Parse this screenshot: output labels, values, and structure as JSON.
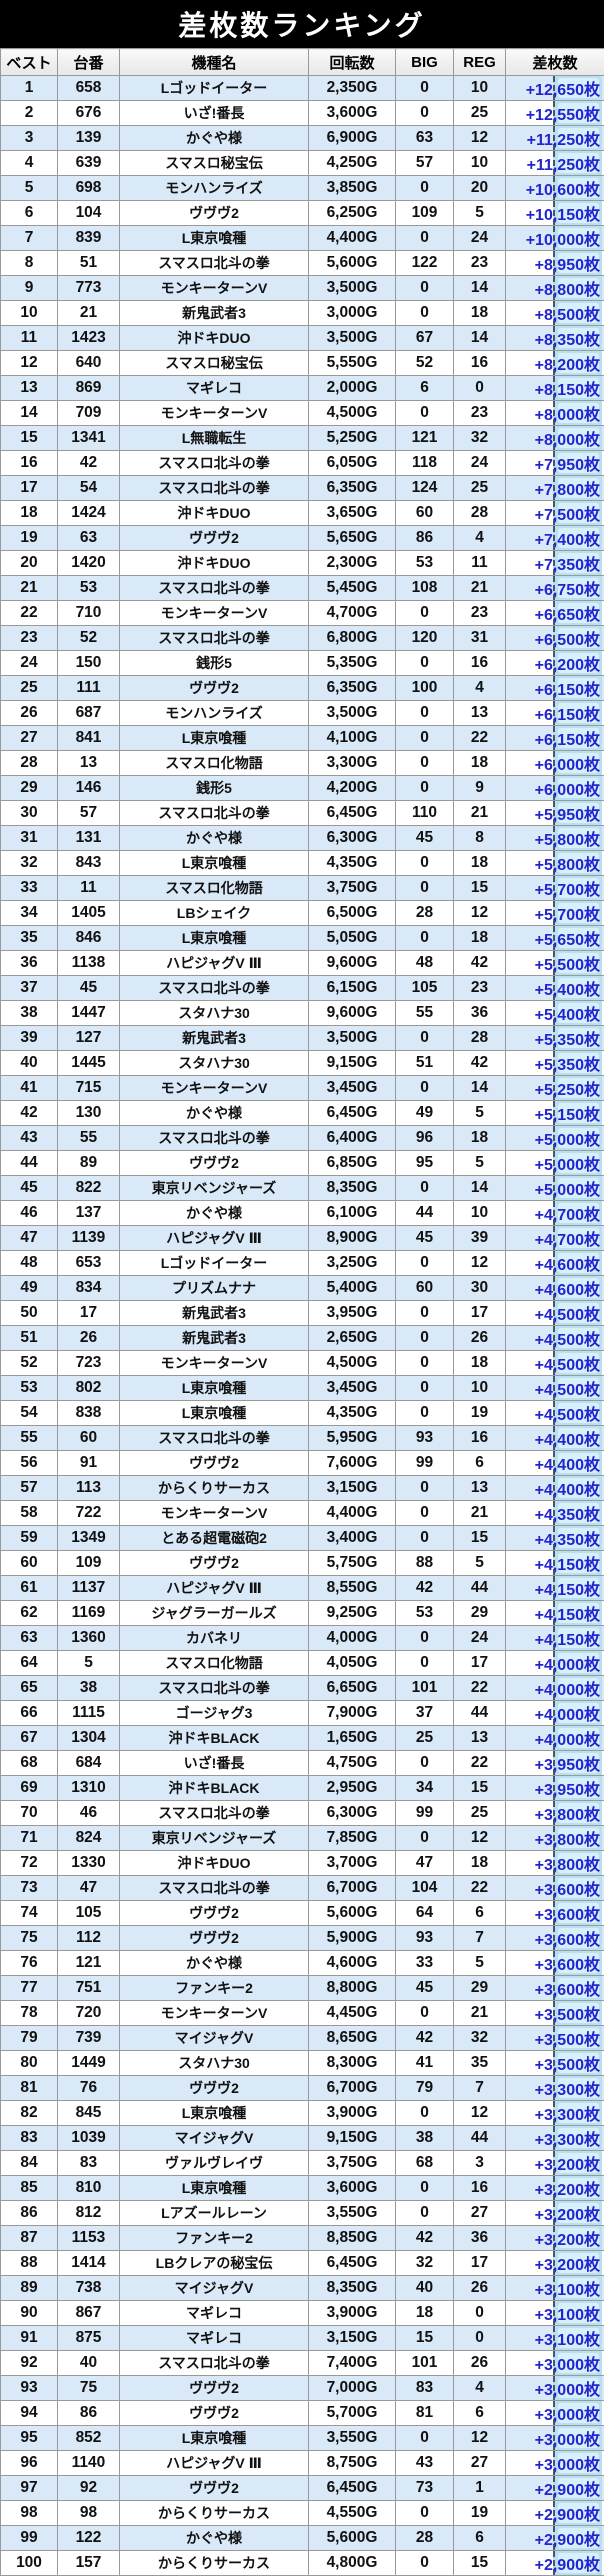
{
  "title": "差枚数ランキング",
  "columns": [
    "ベスト",
    "台番",
    "機種名",
    "回転数",
    "BIG",
    "REG",
    "差枚数"
  ],
  "colors": {
    "title_bg": "#000000",
    "title_text": "#ffffff",
    "header_bg": "#eeeeee",
    "row_alt_blue": "#d9e9f8",
    "row_white": "#ffffff",
    "border": "#999999",
    "diff_text_blue": "#2424cf",
    "highlight_band": "#cdeaf8"
  },
  "rows": [
    [
      "1",
      "658",
      "Lゴッドイーター",
      "2,350G",
      "0",
      "10",
      "+12,650枚"
    ],
    [
      "2",
      "676",
      "いざ!番長",
      "3,600G",
      "0",
      "25",
      "+12,550枚"
    ],
    [
      "3",
      "139",
      "かぐや様",
      "6,900G",
      "63",
      "12",
      "+11,250枚"
    ],
    [
      "4",
      "639",
      "スマスロ秘宝伝",
      "4,250G",
      "57",
      "10",
      "+11,250枚"
    ],
    [
      "5",
      "698",
      "モンハンライズ",
      "3,850G",
      "0",
      "20",
      "+10,600枚"
    ],
    [
      "6",
      "104",
      "ヴヴヴ2",
      "6,250G",
      "109",
      "5",
      "+10,150枚"
    ],
    [
      "7",
      "839",
      "L東京喰種",
      "4,400G",
      "0",
      "24",
      "+10,000枚"
    ],
    [
      "8",
      "51",
      "スマスロ北斗の拳",
      "5,600G",
      "122",
      "23",
      "+8,950枚"
    ],
    [
      "9",
      "773",
      "モンキーターンV",
      "3,500G",
      "0",
      "14",
      "+8,800枚"
    ],
    [
      "10",
      "21",
      "新鬼武者3",
      "3,000G",
      "0",
      "18",
      "+8,500枚"
    ],
    [
      "11",
      "1423",
      "沖ドキDUO",
      "3,500G",
      "67",
      "14",
      "+8,350枚"
    ],
    [
      "12",
      "640",
      "スマスロ秘宝伝",
      "5,550G",
      "52",
      "16",
      "+8,200枚"
    ],
    [
      "13",
      "869",
      "マギレコ",
      "2,000G",
      "6",
      "0",
      "+8,150枚"
    ],
    [
      "14",
      "709",
      "モンキーターンV",
      "4,500G",
      "0",
      "23",
      "+8,000枚"
    ],
    [
      "15",
      "1341",
      "L無職転生",
      "5,250G",
      "121",
      "32",
      "+8,000枚"
    ],
    [
      "16",
      "42",
      "スマスロ北斗の拳",
      "6,050G",
      "118",
      "24",
      "+7,950枚"
    ],
    [
      "17",
      "54",
      "スマスロ北斗の拳",
      "6,350G",
      "124",
      "25",
      "+7,800枚"
    ],
    [
      "18",
      "1424",
      "沖ドキDUO",
      "3,650G",
      "60",
      "28",
      "+7,500枚"
    ],
    [
      "19",
      "63",
      "ヴヴヴ2",
      "5,650G",
      "86",
      "4",
      "+7,400枚"
    ],
    [
      "20",
      "1420",
      "沖ドキDUO",
      "2,300G",
      "53",
      "11",
      "+7,350枚"
    ],
    [
      "21",
      "53",
      "スマスロ北斗の拳",
      "5,450G",
      "108",
      "21",
      "+6,750枚"
    ],
    [
      "22",
      "710",
      "モンキーターンV",
      "4,700G",
      "0",
      "23",
      "+6,650枚"
    ],
    [
      "23",
      "52",
      "スマスロ北斗の拳",
      "6,800G",
      "120",
      "31",
      "+6,500枚"
    ],
    [
      "24",
      "150",
      "銭形5",
      "5,350G",
      "0",
      "16",
      "+6,200枚"
    ],
    [
      "25",
      "111",
      "ヴヴヴ2",
      "6,350G",
      "100",
      "4",
      "+6,150枚"
    ],
    [
      "26",
      "687",
      "モンハンライズ",
      "3,500G",
      "0",
      "13",
      "+6,150枚"
    ],
    [
      "27",
      "841",
      "L東京喰種",
      "4,100G",
      "0",
      "22",
      "+6,150枚"
    ],
    [
      "28",
      "13",
      "スマスロ化物語",
      "3,300G",
      "0",
      "18",
      "+6,000枚"
    ],
    [
      "29",
      "146",
      "銭形5",
      "4,200G",
      "0",
      "9",
      "+6,000枚"
    ],
    [
      "30",
      "57",
      "スマスロ北斗の拳",
      "6,450G",
      "110",
      "21",
      "+5,950枚"
    ],
    [
      "31",
      "131",
      "かぐや様",
      "6,300G",
      "45",
      "8",
      "+5,800枚"
    ],
    [
      "32",
      "843",
      "L東京喰種",
      "4,350G",
      "0",
      "18",
      "+5,800枚"
    ],
    [
      "33",
      "11",
      "スマスロ化物語",
      "3,750G",
      "0",
      "15",
      "+5,700枚"
    ],
    [
      "34",
      "1405",
      "LBシェイク",
      "6,500G",
      "28",
      "12",
      "+5,700枚"
    ],
    [
      "35",
      "846",
      "L東京喰種",
      "5,050G",
      "0",
      "18",
      "+5,650枚"
    ],
    [
      "36",
      "1138",
      "ハピジャグV Ⅲ",
      "9,600G",
      "48",
      "42",
      "+5,500枚"
    ],
    [
      "37",
      "45",
      "スマスロ北斗の拳",
      "6,150G",
      "105",
      "23",
      "+5,400枚"
    ],
    [
      "38",
      "1447",
      "スタハナ30",
      "9,600G",
      "55",
      "36",
      "+5,400枚"
    ],
    [
      "39",
      "127",
      "新鬼武者3",
      "3,500G",
      "0",
      "28",
      "+5,350枚"
    ],
    [
      "40",
      "1445",
      "スタハナ30",
      "9,150G",
      "51",
      "42",
      "+5,350枚"
    ],
    [
      "41",
      "715",
      "モンキーターンV",
      "3,450G",
      "0",
      "14",
      "+5,250枚"
    ],
    [
      "42",
      "130",
      "かぐや様",
      "6,450G",
      "49",
      "5",
      "+5,150枚"
    ],
    [
      "43",
      "55",
      "スマスロ北斗の拳",
      "6,400G",
      "96",
      "18",
      "+5,000枚"
    ],
    [
      "44",
      "89",
      "ヴヴヴ2",
      "6,850G",
      "95",
      "5",
      "+5,000枚"
    ],
    [
      "45",
      "822",
      "東京リベンジャーズ",
      "8,350G",
      "0",
      "14",
      "+5,000枚"
    ],
    [
      "46",
      "137",
      "かぐや様",
      "6,100G",
      "44",
      "10",
      "+4,700枚"
    ],
    [
      "47",
      "1139",
      "ハピジャグV Ⅲ",
      "8,900G",
      "45",
      "39",
      "+4,700枚"
    ],
    [
      "48",
      "653",
      "Lゴッドイーター",
      "3,250G",
      "0",
      "12",
      "+4,600枚"
    ],
    [
      "49",
      "834",
      "プリズムナナ",
      "5,400G",
      "60",
      "30",
      "+4,600枚"
    ],
    [
      "50",
      "17",
      "新鬼武者3",
      "3,950G",
      "0",
      "17",
      "+4,500枚"
    ],
    [
      "51",
      "26",
      "新鬼武者3",
      "2,650G",
      "0",
      "26",
      "+4,500枚"
    ],
    [
      "52",
      "723",
      "モンキーターンV",
      "4,500G",
      "0",
      "18",
      "+4,500枚"
    ],
    [
      "53",
      "802",
      "L東京喰種",
      "3,450G",
      "0",
      "10",
      "+4,500枚"
    ],
    [
      "54",
      "838",
      "L東京喰種",
      "4,350G",
      "0",
      "19",
      "+4,500枚"
    ],
    [
      "55",
      "60",
      "スマスロ北斗の拳",
      "5,950G",
      "93",
      "16",
      "+4,400枚"
    ],
    [
      "56",
      "91",
      "ヴヴヴ2",
      "7,600G",
      "99",
      "6",
      "+4,400枚"
    ],
    [
      "57",
      "113",
      "からくりサーカス",
      "3,150G",
      "0",
      "13",
      "+4,400枚"
    ],
    [
      "58",
      "722",
      "モンキーターンV",
      "4,400G",
      "0",
      "21",
      "+4,350枚"
    ],
    [
      "59",
      "1349",
      "とある超電磁砲2",
      "3,400G",
      "0",
      "15",
      "+4,350枚"
    ],
    [
      "60",
      "109",
      "ヴヴヴ2",
      "5,750G",
      "88",
      "5",
      "+4,150枚"
    ],
    [
      "61",
      "1137",
      "ハピジャグV Ⅲ",
      "8,550G",
      "42",
      "44",
      "+4,150枚"
    ],
    [
      "62",
      "1169",
      "ジャグラーガールズ",
      "9,250G",
      "53",
      "29",
      "+4,150枚"
    ],
    [
      "63",
      "1360",
      "カバネリ",
      "4,000G",
      "0",
      "24",
      "+4,150枚"
    ],
    [
      "64",
      "5",
      "スマスロ化物語",
      "4,050G",
      "0",
      "17",
      "+4,000枚"
    ],
    [
      "65",
      "38",
      "スマスロ北斗の拳",
      "6,650G",
      "101",
      "22",
      "+4,000枚"
    ],
    [
      "66",
      "1115",
      "ゴージャグ3",
      "7,900G",
      "37",
      "44",
      "+4,000枚"
    ],
    [
      "67",
      "1304",
      "沖ドキBLACK",
      "1,650G",
      "25",
      "13",
      "+4,000枚"
    ],
    [
      "68",
      "684",
      "いざ!番長",
      "4,750G",
      "0",
      "22",
      "+3,950枚"
    ],
    [
      "69",
      "1310",
      "沖ドキBLACK",
      "2,950G",
      "34",
      "15",
      "+3,950枚"
    ],
    [
      "70",
      "46",
      "スマスロ北斗の拳",
      "6,300G",
      "99",
      "25",
      "+3,800枚"
    ],
    [
      "71",
      "824",
      "東京リベンジャーズ",
      "7,850G",
      "0",
      "12",
      "+3,800枚"
    ],
    [
      "72",
      "1330",
      "沖ドキDUO",
      "3,700G",
      "47",
      "18",
      "+3,800枚"
    ],
    [
      "73",
      "47",
      "スマスロ北斗の拳",
      "6,700G",
      "104",
      "22",
      "+3,600枚"
    ],
    [
      "74",
      "105",
      "ヴヴヴ2",
      "5,600G",
      "64",
      "6",
      "+3,600枚"
    ],
    [
      "75",
      "112",
      "ヴヴヴ2",
      "5,900G",
      "93",
      "7",
      "+3,600枚"
    ],
    [
      "76",
      "121",
      "かぐや様",
      "4,600G",
      "33",
      "5",
      "+3,600枚"
    ],
    [
      "77",
      "751",
      "ファンキー2",
      "8,800G",
      "45",
      "29",
      "+3,600枚"
    ],
    [
      "78",
      "720",
      "モンキーターンV",
      "4,450G",
      "0",
      "21",
      "+3,500枚"
    ],
    [
      "79",
      "739",
      "マイジャグV",
      "8,650G",
      "42",
      "32",
      "+3,500枚"
    ],
    [
      "80",
      "1449",
      "スタハナ30",
      "8,300G",
      "41",
      "35",
      "+3,500枚"
    ],
    [
      "81",
      "76",
      "ヴヴヴ2",
      "6,700G",
      "79",
      "7",
      "+3,300枚"
    ],
    [
      "82",
      "845",
      "L東京喰種",
      "3,900G",
      "0",
      "12",
      "+3,300枚"
    ],
    [
      "83",
      "1039",
      "マイジャグV",
      "9,150G",
      "38",
      "44",
      "+3,300枚"
    ],
    [
      "84",
      "83",
      "ヴァルヴレイヴ",
      "3,750G",
      "68",
      "3",
      "+3,200枚"
    ],
    [
      "85",
      "810",
      "L東京喰種",
      "3,600G",
      "0",
      "16",
      "+3,200枚"
    ],
    [
      "86",
      "812",
      "Lアズールレーン",
      "3,550G",
      "0",
      "27",
      "+3,200枚"
    ],
    [
      "87",
      "1153",
      "ファンキー2",
      "8,850G",
      "42",
      "36",
      "+3,200枚"
    ],
    [
      "88",
      "1414",
      "LBクレアの秘宝伝",
      "6,450G",
      "32",
      "17",
      "+3,200枚"
    ],
    [
      "89",
      "738",
      "マイジャグV",
      "8,350G",
      "40",
      "26",
      "+3,100枚"
    ],
    [
      "90",
      "867",
      "マギレコ",
      "3,900G",
      "18",
      "0",
      "+3,100枚"
    ],
    [
      "91",
      "875",
      "マギレコ",
      "3,150G",
      "15",
      "0",
      "+3,100枚"
    ],
    [
      "92",
      "40",
      "スマスロ北斗の拳",
      "7,400G",
      "101",
      "26",
      "+3,000枚"
    ],
    [
      "93",
      "75",
      "ヴヴヴ2",
      "7,000G",
      "83",
      "4",
      "+3,000枚"
    ],
    [
      "94",
      "86",
      "ヴヴヴ2",
      "5,700G",
      "81",
      "6",
      "+3,000枚"
    ],
    [
      "95",
      "852",
      "L東京喰種",
      "3,550G",
      "0",
      "12",
      "+3,000枚"
    ],
    [
      "96",
      "1140",
      "ハピジャグV Ⅲ",
      "8,750G",
      "43",
      "27",
      "+3,000枚"
    ],
    [
      "97",
      "92",
      "ヴヴヴ2",
      "6,450G",
      "73",
      "1",
      "+2,900枚"
    ],
    [
      "98",
      "98",
      "からくりサーカス",
      "4,550G",
      "0",
      "19",
      "+2,900枚"
    ],
    [
      "99",
      "122",
      "かぐや様",
      "5,600G",
      "28",
      "6",
      "+2,900枚"
    ],
    [
      "100",
      "157",
      "からくりサーカス",
      "4,800G",
      "0",
      "15",
      "+2,900枚"
    ]
  ]
}
